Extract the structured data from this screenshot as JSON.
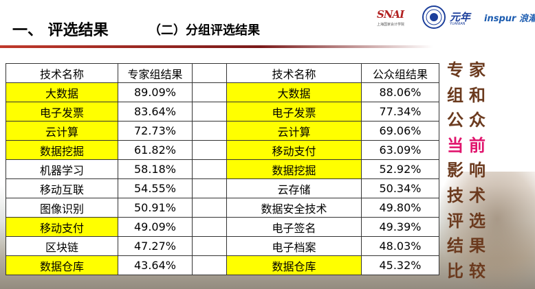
{
  "header": {
    "title": "一、 评选结果",
    "subtitle": "（二）分组评选结果"
  },
  "logos": {
    "snai_text": "SNAI",
    "snai_sub": "上海国家会计学院",
    "yuan_text": "元年",
    "yuan_sub": "YUANIAN",
    "inspur_text": "inspur 浪潮"
  },
  "colors": {
    "highlight": "#ffff00",
    "side_text": "#6b3a1e",
    "side_accent": "#e0136c",
    "title_rule": "#c0392b"
  },
  "table": {
    "expert": {
      "header_name": "技术名称",
      "header_score": "专家组结果",
      "rows": [
        {
          "name": "大数据",
          "score": "89.09%",
          "highlight": true
        },
        {
          "name": "电子发票",
          "score": "83.64%",
          "highlight": true
        },
        {
          "name": "云计算",
          "score": "72.73%",
          "highlight": true
        },
        {
          "name": "数据挖掘",
          "score": "61.82%",
          "highlight": true
        },
        {
          "name": "机器学习",
          "score": "58.18%",
          "highlight": false
        },
        {
          "name": "移动互联",
          "score": "54.55%",
          "highlight": false
        },
        {
          "name": "图像识别",
          "score": "50.91%",
          "highlight": false
        },
        {
          "name": "移动支付",
          "score": "49.09%",
          "highlight": true
        },
        {
          "name": "区块链",
          "score": "47.27%",
          "highlight": false
        },
        {
          "name": "数据仓库",
          "score": "43.64%",
          "highlight": true
        }
      ]
    },
    "public": {
      "header_name": "技术名称",
      "header_score": "公众组结果",
      "rows": [
        {
          "name": "大数据",
          "score": "88.06%",
          "highlight": true
        },
        {
          "name": "电子发票",
          "score": "77.34%",
          "highlight": true
        },
        {
          "name": "云计算",
          "score": "69.06%",
          "highlight": true
        },
        {
          "name": "移动支付",
          "score": "63.09%",
          "highlight": true
        },
        {
          "name": "数据挖掘",
          "score": "52.92%",
          "highlight": true
        },
        {
          "name": "云存储",
          "score": "50.34%",
          "highlight": false
        },
        {
          "name": "数据安全技术",
          "score": "49.80%",
          "highlight": false
        },
        {
          "name": "电子签名",
          "score": "49.39%",
          "highlight": false
        },
        {
          "name": "电子档案",
          "score": "48.03%",
          "highlight": false
        },
        {
          "name": "数据仓库",
          "score": "45.32%",
          "highlight": true
        }
      ]
    }
  },
  "side_caption": {
    "lines": [
      "专家",
      "组和",
      "公众",
      "当前",
      "影响",
      "技术",
      "评选",
      "结果",
      "比较"
    ],
    "accent_line": "当前"
  }
}
